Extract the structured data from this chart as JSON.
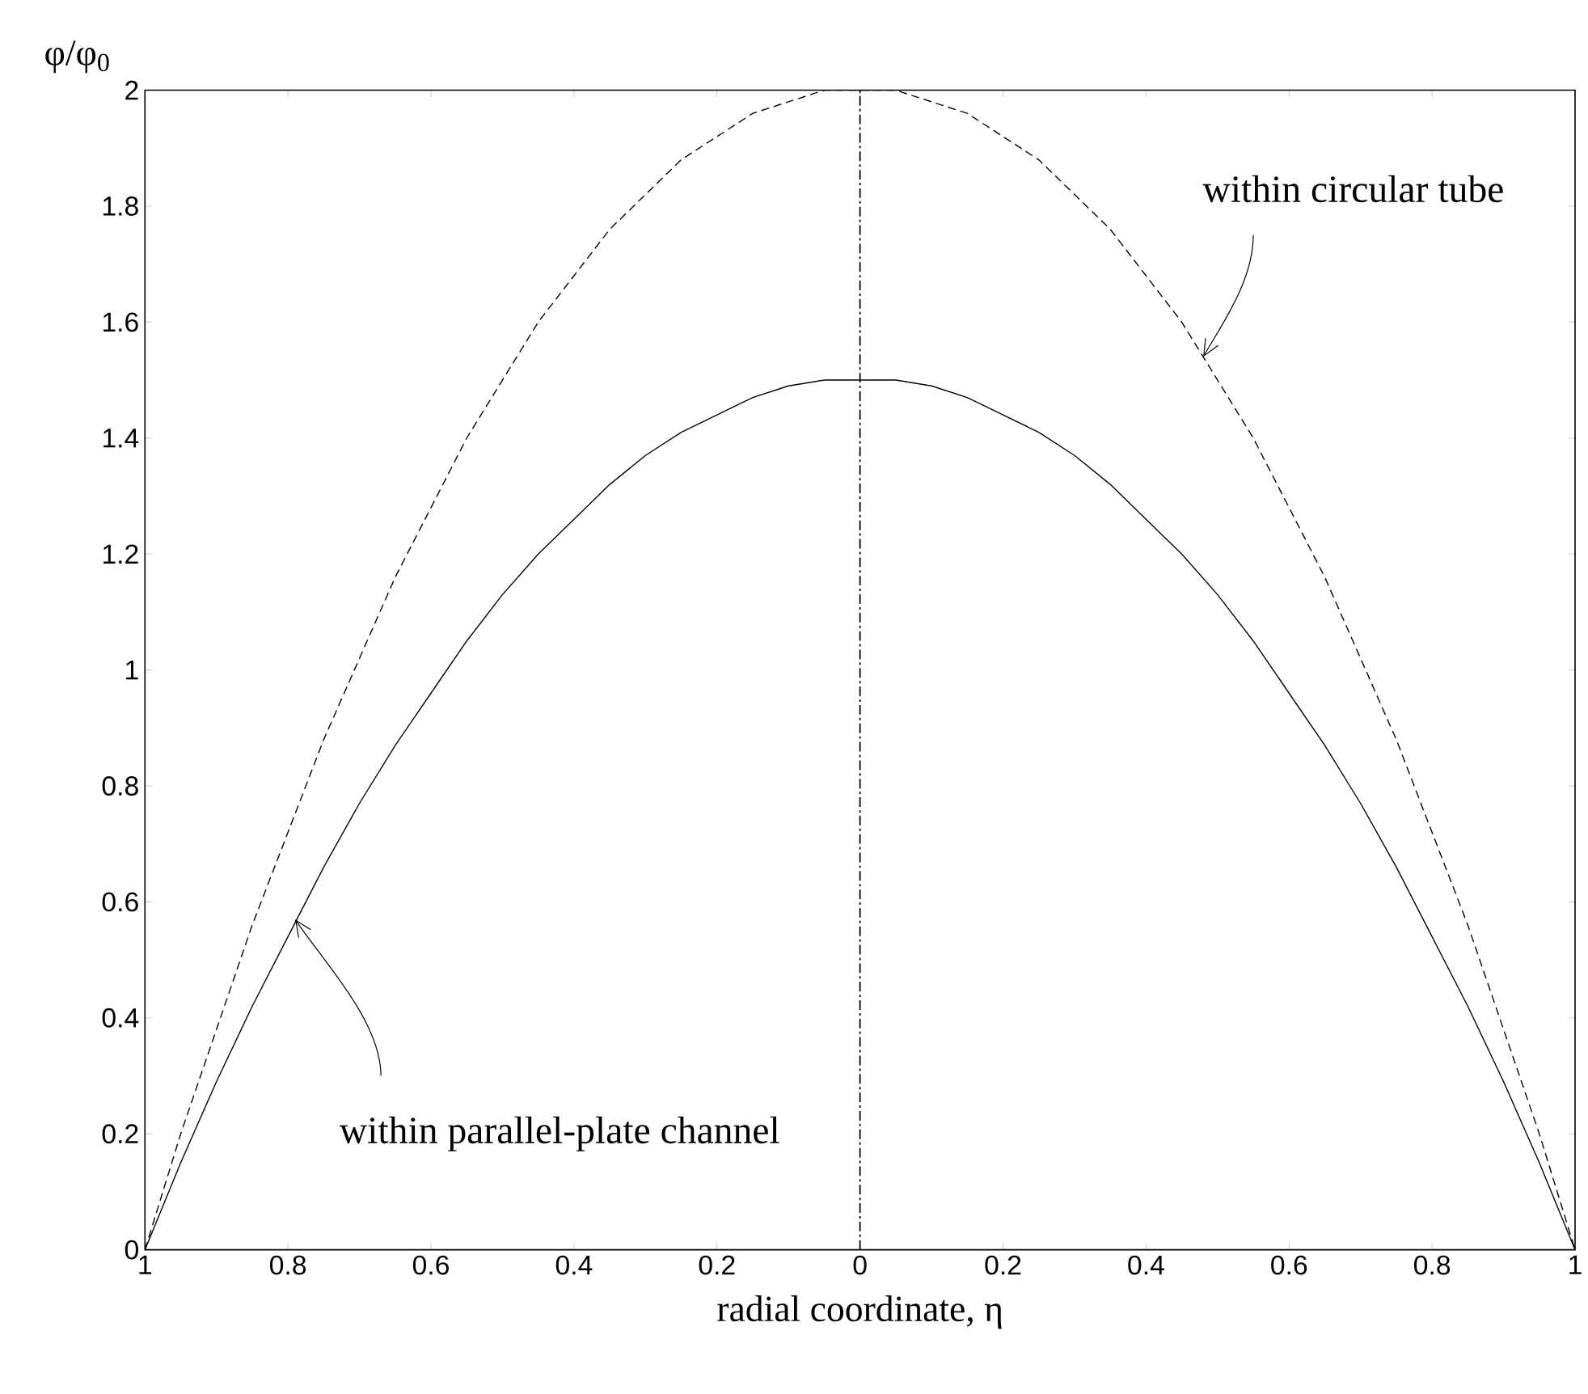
{
  "chart_data": {
    "type": "line",
    "x": [
      -1,
      -0.95,
      -0.9,
      -0.85,
      -0.8,
      -0.75,
      -0.7,
      -0.65,
      -0.6,
      -0.55,
      -0.5,
      -0.45,
      -0.4,
      -0.35,
      -0.3,
      -0.25,
      -0.2,
      -0.15,
      -0.1,
      -0.05,
      0,
      0.05,
      0.1,
      0.15,
      0.2,
      0.25,
      0.3,
      0.35,
      0.4,
      0.45,
      0.5,
      0.55,
      0.6,
      0.65,
      0.7,
      0.75,
      0.8,
      0.85,
      0.9,
      0.95,
      1
    ],
    "series": [
      {
        "color": "#000000",
        "line_style": "dashed",
        "values": [
          0,
          0.2,
          0.38,
          0.56,
          0.72,
          0.88,
          1.02,
          1.16,
          1.28,
          1.4,
          1.5,
          1.6,
          1.68,
          1.76,
          1.82,
          1.88,
          1.92,
          1.96,
          1.98,
          2,
          2,
          2,
          1.98,
          1.96,
          1.92,
          1.88,
          1.82,
          1.76,
          1.68,
          1.6,
          1.5,
          1.4,
          1.28,
          1.16,
          1.02,
          0.88,
          0.72,
          0.56,
          0.38,
          0.2,
          0
        ]
      },
      {
        "color": "#000000",
        "line_style": "solid",
        "values": [
          0,
          0.15,
          0.29,
          0.42,
          0.54,
          0.66,
          0.77,
          0.87,
          0.96,
          1.05,
          1.13,
          1.2,
          1.26,
          1.32,
          1.37,
          1.41,
          1.44,
          1.47,
          1.49,
          1.5,
          1.5,
          1.5,
          1.49,
          1.47,
          1.44,
          1.41,
          1.37,
          1.32,
          1.26,
          1.2,
          1.13,
          1.05,
          0.96,
          0.87,
          0.77,
          0.66,
          0.54,
          0.42,
          0.29,
          0.15,
          0
        ]
      }
    ],
    "xlabel": "radial coordinate, η",
    "ylabel": "φ/φ$_{0}$",
    "xlim": [
      -1,
      1
    ],
    "ylim": [
      0,
      2
    ],
    "xticks": [
      {
        "value": -1,
        "label": "1"
      },
      {
        "value": -0.8,
        "label": "0.8"
      },
      {
        "value": -0.6,
        "label": "0.6"
      },
      {
        "value": -0.4,
        "label": "0.4"
      },
      {
        "value": -0.2,
        "label": "0.2"
      },
      0,
      0.2,
      0.4,
      0.6,
      0.8,
      1
    ],
    "yticks": [
      0,
      0.2,
      0.4,
      0.6,
      0.8,
      1,
      1.2,
      1.4,
      1.6,
      1.8,
      2
    ],
    "ref_lines": [
      {
        "axis": "x",
        "value": 0,
        "line_style": "dashdot",
        "color": "#000000"
      }
    ],
    "annotations": [
      {
        "text": "within circular tube",
        "x": 0.48,
        "y": 1.54
      },
      {
        "text": "within parallel-plate channel",
        "x": -0.79,
        "y": 0.57
      }
    ],
    "grid": false
  }
}
